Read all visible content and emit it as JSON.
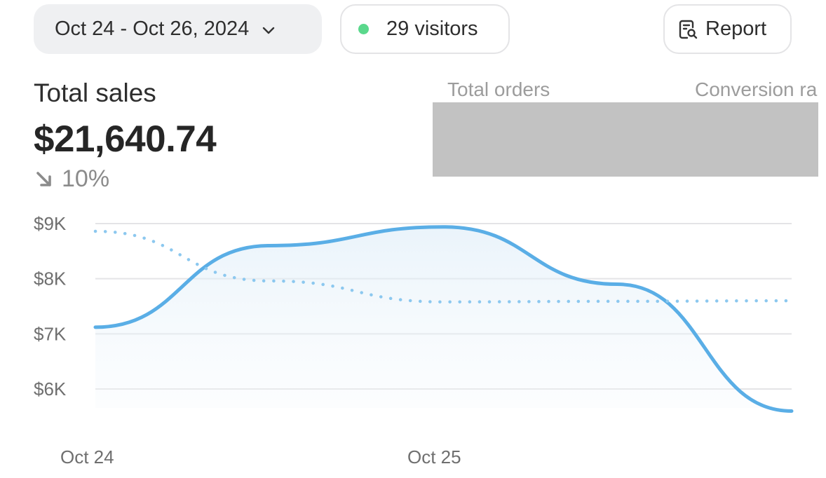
{
  "toolbar": {
    "date_range": "Oct 24 - Oct 26, 2024",
    "visitors": "29 visitors",
    "visitors_dot_color": "#5ad88c",
    "report_label": "Report",
    "date_icon": "chevron-down-icon",
    "report_icon": "report-search-icon"
  },
  "metrics": {
    "title": "Total sales",
    "value": "$21,640.74",
    "change": "10%",
    "change_direction": "down",
    "tabs": [
      "Total orders",
      "Conversion ra"
    ]
  },
  "chart_data": {
    "type": "line",
    "x": [
      "Oct 24",
      "Oct 24.5",
      "Oct 25",
      "Oct 25.5",
      "Oct 26"
    ],
    "x_tick_labels": [
      "Oct 24",
      "Oct 25"
    ],
    "y_tick_labels": [
      "$9K",
      "$8K",
      "$7K",
      "$6K"
    ],
    "y_ticks": [
      9000,
      8000,
      7000,
      6000
    ],
    "ylim": [
      5600,
      9200
    ],
    "series": [
      {
        "style": "solid",
        "color": "#5aaee6",
        "fill": true,
        "values": [
          7120,
          8600,
          8940,
          7900,
          5600
        ]
      },
      {
        "style": "dotted",
        "color": "#8cc8ef",
        "values": [
          8860,
          7960,
          7580,
          7590,
          7600
        ]
      }
    ],
    "grid": true
  }
}
